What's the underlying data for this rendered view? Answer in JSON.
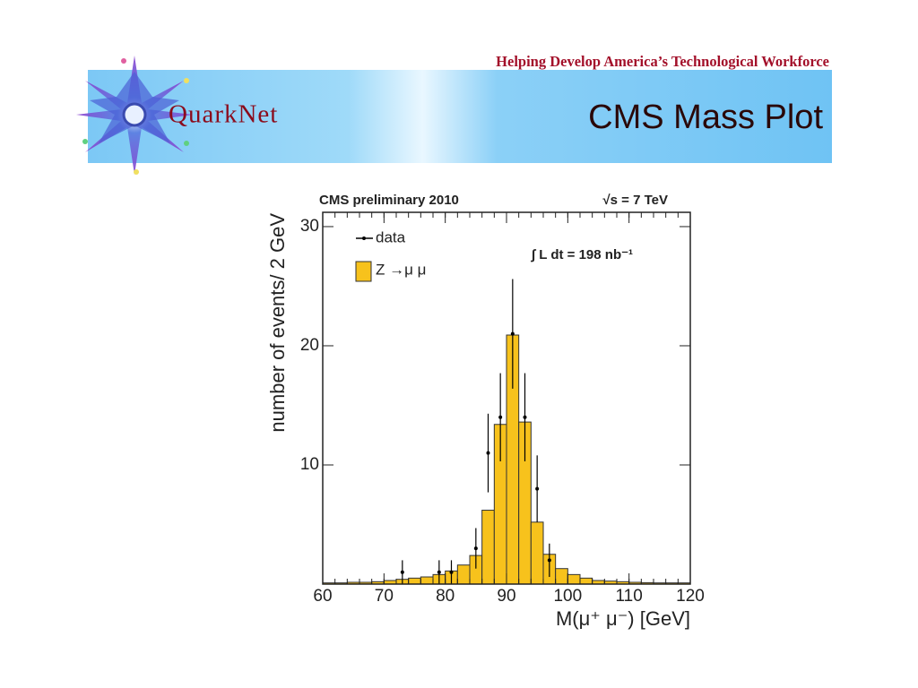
{
  "header": {
    "tagline": "Helping Develop America’s Technological Workforce",
    "logo": "QuarkNet",
    "title": "CMS Mass Plot"
  },
  "chart_data": {
    "type": "histogram",
    "title": "CMS preliminary 2010",
    "subtitle": "√s = 7 TeV",
    "annotation": "∫ L dt = 198 nb⁻¹",
    "xlabel": "M(μ⁺ μ⁻) [GeV]",
    "ylabel": "number of events/ 2 GeV",
    "bins": [
      60,
      62,
      64,
      66,
      68,
      70,
      72,
      74,
      76,
      78,
      80,
      82,
      84,
      86,
      88,
      90,
      92,
      94,
      96,
      98,
      100,
      102,
      104,
      106,
      108,
      110,
      112,
      114,
      116,
      118,
      120
    ],
    "series": [
      {
        "name": "Z →μ μ",
        "color": "#f7c21c",
        "values": [
          0.1,
          0.1,
          0.15,
          0.15,
          0.2,
          0.3,
          0.4,
          0.5,
          0.6,
          0.8,
          1.1,
          1.6,
          2.4,
          6.2,
          13.4,
          20.9,
          13.6,
          5.2,
          2.5,
          1.3,
          0.8,
          0.5,
          0.3,
          0.25,
          0.2,
          0.15,
          0.12,
          0.1,
          0.1,
          0.1
        ]
      },
      {
        "name": "data",
        "color": "#000000",
        "x": [
          73,
          79,
          81,
          85,
          87,
          89,
          91,
          93,
          95,
          97
        ],
        "values": [
          1,
          1,
          1,
          3,
          11,
          14,
          21,
          14,
          8,
          2
        ],
        "errors": [
          1,
          1,
          1,
          1.7,
          3.3,
          3.7,
          4.6,
          3.7,
          2.8,
          1.4
        ]
      }
    ],
    "xlim": [
      60,
      120
    ],
    "ylim": [
      0,
      31.2
    ],
    "xticks": [
      60,
      70,
      80,
      90,
      100,
      110,
      120
    ],
    "yticks": [
      10,
      20,
      30
    ]
  }
}
